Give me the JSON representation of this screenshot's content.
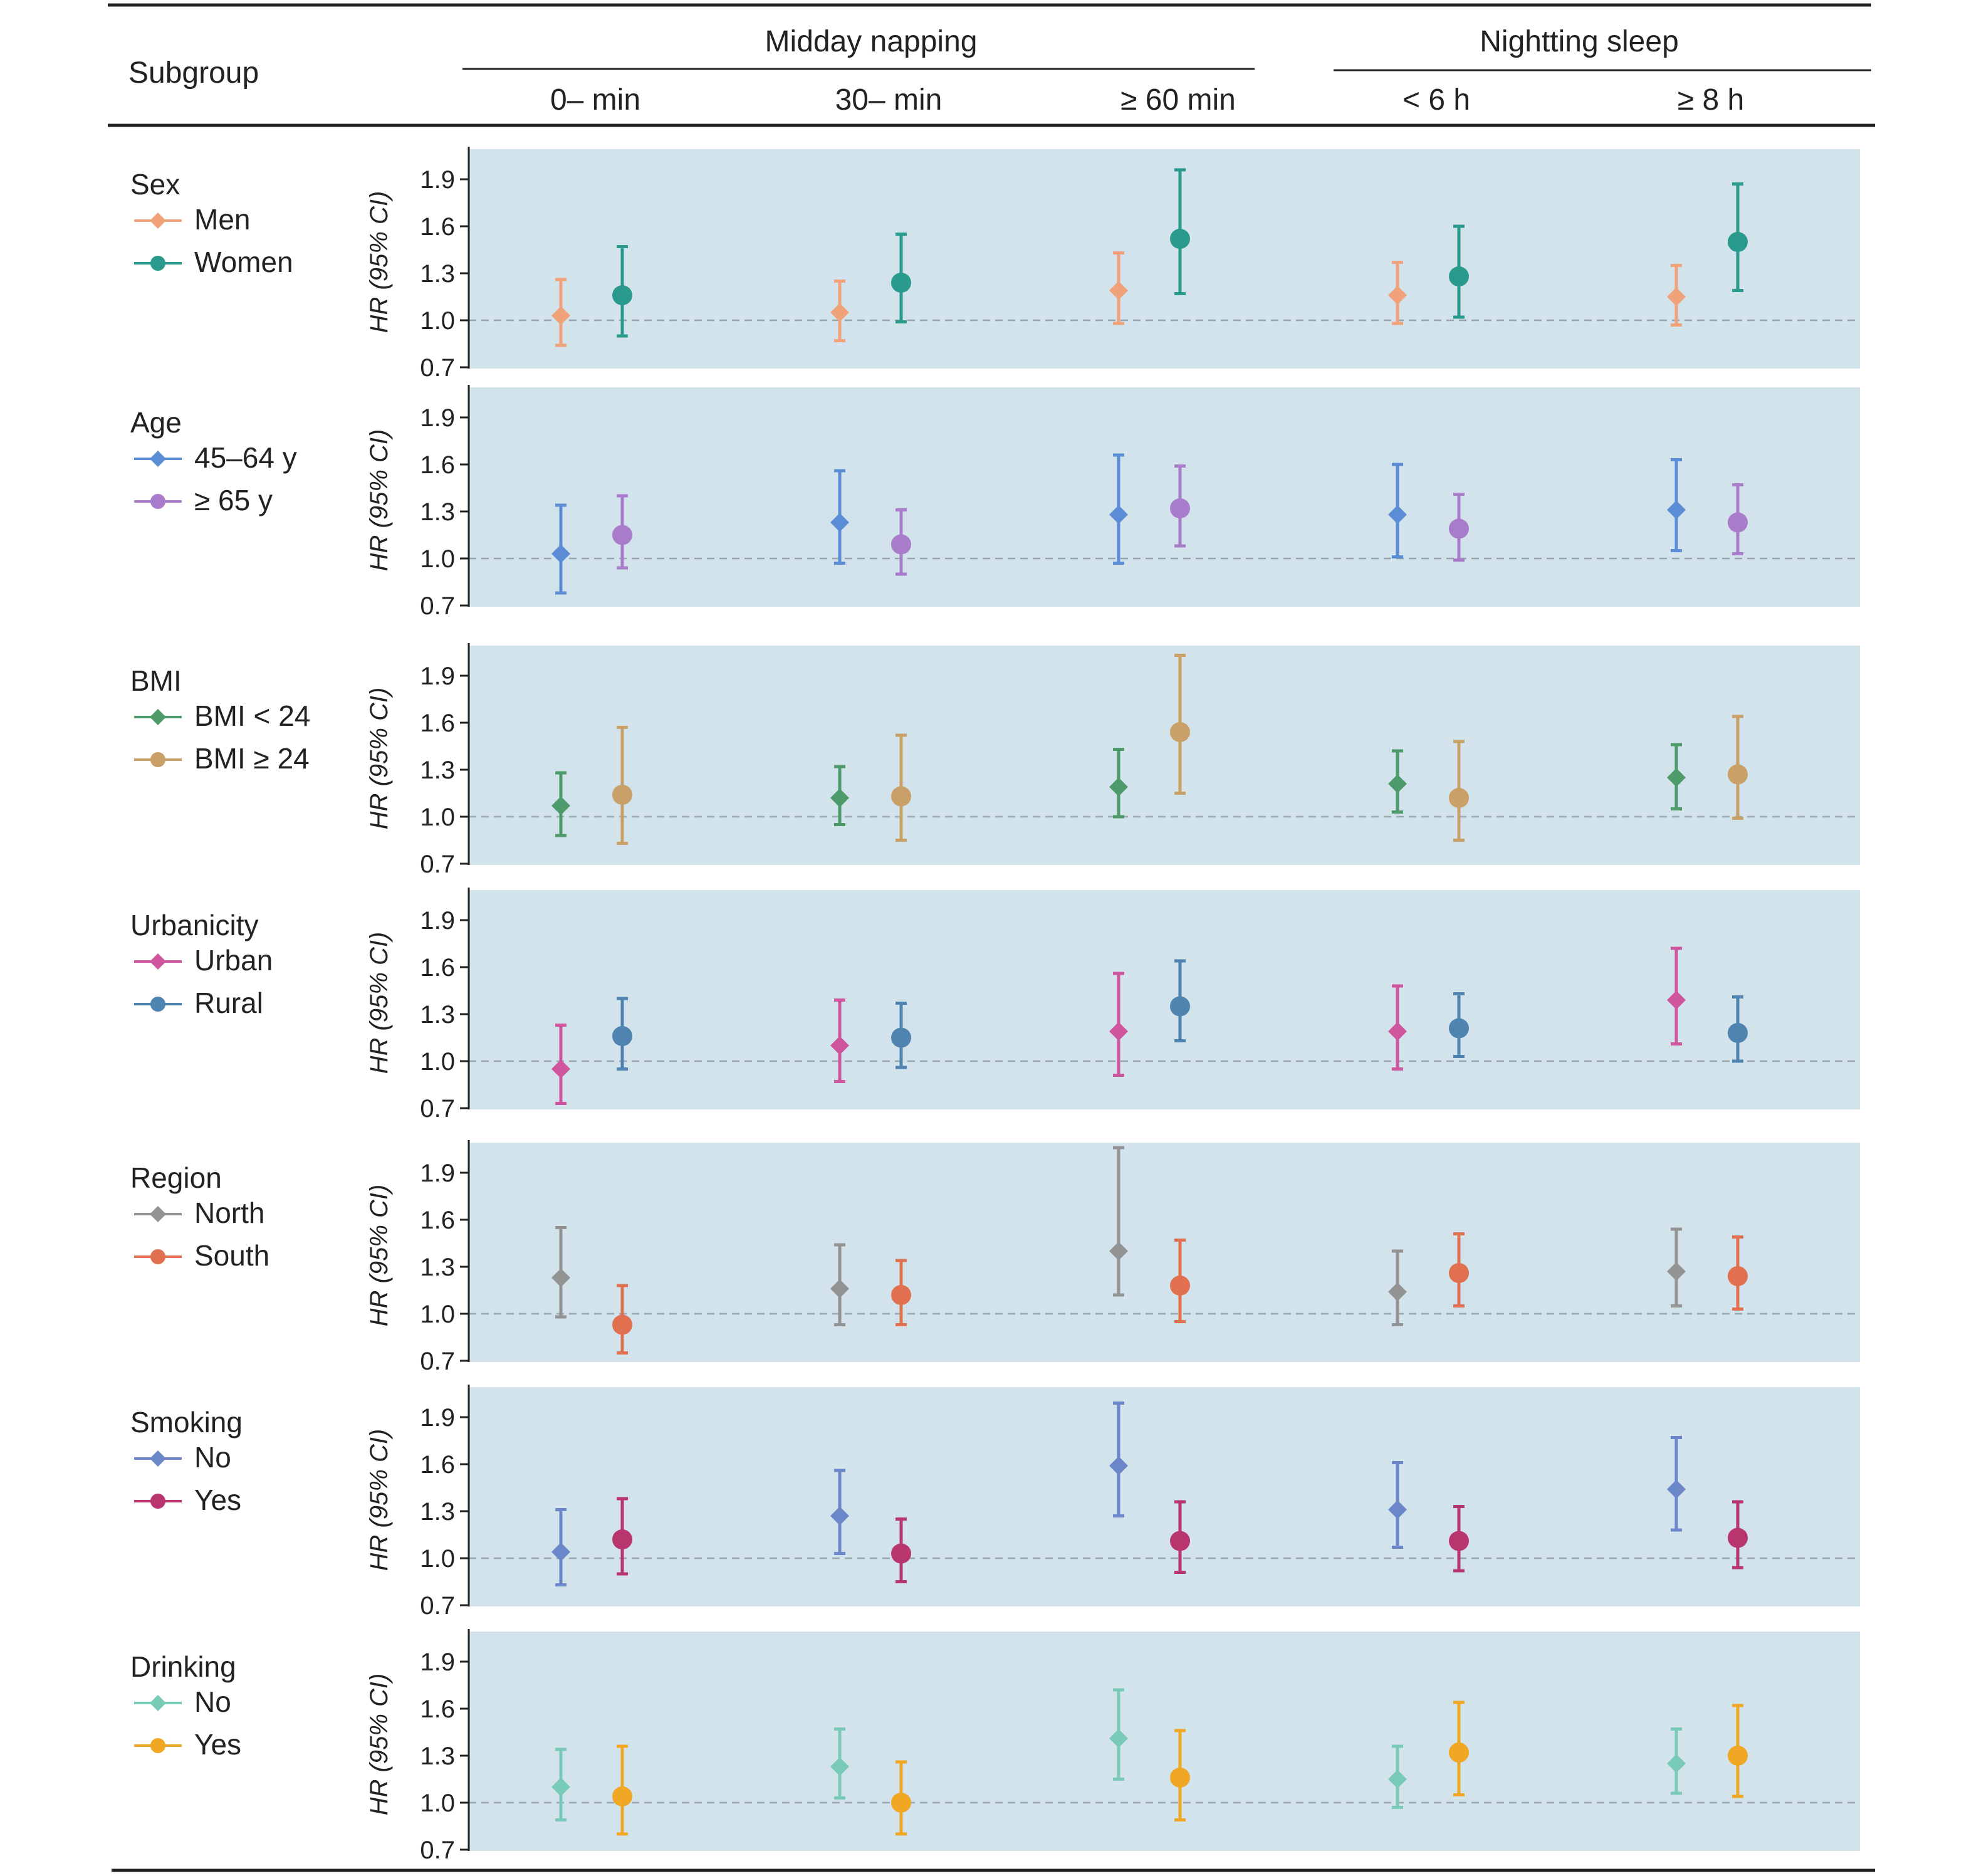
{
  "header": {
    "subgroup": "Subgroup",
    "groups": [
      {
        "label": "Midday napping",
        "columns": [
          "0– min",
          "30– min",
          "≥ 60 min"
        ]
      },
      {
        "label": "Nightting sleep",
        "columns": [
          "< 6 h",
          "≥ 8 h"
        ]
      }
    ]
  },
  "chart_data": {
    "type": "forest",
    "ylabel": "HR (95% CI)",
    "yticks": [
      "1.9",
      "1.6",
      "1.3",
      "1.0",
      "0.7"
    ],
    "ylim": [
      0.7,
      2.05
    ],
    "reference_line": 1.0,
    "columns": [
      "0– min",
      "30– min",
      "≥ 60 min",
      "< 6 h",
      "≥ 8 h"
    ],
    "panels": [
      {
        "title": "Sex",
        "series": [
          {
            "name": "Men",
            "marker": "diamond",
            "color": "#f0a27a",
            "hr": [
              1.03,
              1.05,
              1.19,
              1.16,
              1.15
            ],
            "lo": [
              0.84,
              0.87,
              0.98,
              0.98,
              0.97
            ],
            "hi": [
              1.26,
              1.25,
              1.43,
              1.37,
              1.35
            ]
          },
          {
            "name": "Women",
            "marker": "circle",
            "color": "#2a9a8c",
            "hr": [
              1.16,
              1.24,
              1.52,
              1.28,
              1.5
            ],
            "lo": [
              0.9,
              0.99,
              1.17,
              1.02,
              1.19
            ],
            "hi": [
              1.47,
              1.55,
              1.96,
              1.6,
              1.87
            ]
          }
        ]
      },
      {
        "title": "Age",
        "series": [
          {
            "name": "45–64 y",
            "marker": "diamond",
            "color": "#5b8dd6",
            "hr": [
              1.03,
              1.23,
              1.28,
              1.28,
              1.31
            ],
            "lo": [
              0.78,
              0.97,
              0.97,
              1.01,
              1.05
            ],
            "hi": [
              1.34,
              1.56,
              1.66,
              1.6,
              1.63
            ]
          },
          {
            "name": "≥ 65 y",
            "marker": "circle",
            "color": "#a97ccb",
            "hr": [
              1.15,
              1.09,
              1.32,
              1.19,
              1.23
            ],
            "lo": [
              0.94,
              0.9,
              1.08,
              0.99,
              1.03
            ],
            "hi": [
              1.4,
              1.31,
              1.59,
              1.41,
              1.47
            ]
          }
        ]
      },
      {
        "title": "BMI",
        "series": [
          {
            "name": "BMI < 24",
            "marker": "diamond",
            "color": "#4d9a6a",
            "hr": [
              1.07,
              1.12,
              1.19,
              1.21,
              1.25
            ],
            "lo": [
              0.88,
              0.95,
              1.0,
              1.03,
              1.05
            ],
            "hi": [
              1.28,
              1.32,
              1.43,
              1.42,
              1.46
            ]
          },
          {
            "name": "BMI ≥ 24",
            "marker": "circle",
            "color": "#c9a068",
            "hr": [
              1.14,
              1.13,
              1.54,
              1.12,
              1.27
            ],
            "lo": [
              0.83,
              0.85,
              1.15,
              0.85,
              0.99
            ],
            "hi": [
              1.57,
              1.52,
              2.03,
              1.48,
              1.64
            ]
          }
        ]
      },
      {
        "title": "Urbanicity",
        "series": [
          {
            "name": "Urban",
            "marker": "diamond",
            "color": "#d0559f",
            "hr": [
              0.95,
              1.1,
              1.19,
              1.19,
              1.39
            ],
            "lo": [
              0.73,
              0.87,
              0.91,
              0.95,
              1.11
            ],
            "hi": [
              1.23,
              1.39,
              1.56,
              1.48,
              1.72
            ]
          },
          {
            "name": "Rural",
            "marker": "circle",
            "color": "#4f83b0",
            "hr": [
              1.16,
              1.15,
              1.35,
              1.21,
              1.18
            ],
            "lo": [
              0.95,
              0.96,
              1.13,
              1.03,
              1.0
            ],
            "hi": [
              1.4,
              1.37,
              1.64,
              1.43,
              1.41
            ]
          }
        ]
      },
      {
        "title": "Region",
        "series": [
          {
            "name": "North",
            "marker": "diamond",
            "color": "#939393",
            "hr": [
              1.23,
              1.16,
              1.4,
              1.14,
              1.27
            ],
            "lo": [
              0.98,
              0.93,
              1.12,
              0.93,
              1.05
            ],
            "hi": [
              1.55,
              1.44,
              2.06,
              1.4,
              1.54
            ]
          },
          {
            "name": "South",
            "marker": "circle",
            "color": "#e0704f",
            "hr": [
              0.93,
              1.12,
              1.18,
              1.26,
              1.24
            ],
            "lo": [
              0.75,
              0.93,
              0.95,
              1.05,
              1.03
            ],
            "hi": [
              1.18,
              1.34,
              1.47,
              1.51,
              1.49
            ]
          }
        ]
      },
      {
        "title": "Smoking",
        "series": [
          {
            "name": "No",
            "marker": "diamond",
            "color": "#6b86c9",
            "hr": [
              1.04,
              1.27,
              1.59,
              1.31,
              1.44
            ],
            "lo": [
              0.83,
              1.03,
              1.27,
              1.07,
              1.18
            ],
            "hi": [
              1.31,
              1.56,
              1.99,
              1.61,
              1.77
            ]
          },
          {
            "name": "Yes",
            "marker": "circle",
            "color": "#b8356e",
            "hr": [
              1.12,
              1.03,
              1.11,
              1.11,
              1.13
            ],
            "lo": [
              0.9,
              0.85,
              0.91,
              0.92,
              0.94
            ],
            "hi": [
              1.38,
              1.25,
              1.36,
              1.33,
              1.36
            ]
          }
        ]
      },
      {
        "title": "Drinking",
        "series": [
          {
            "name": "No",
            "marker": "diamond",
            "color": "#79cbb8",
            "hr": [
              1.1,
              1.23,
              1.41,
              1.15,
              1.25
            ],
            "lo": [
              0.89,
              1.03,
              1.15,
              0.97,
              1.06
            ],
            "hi": [
              1.34,
              1.47,
              1.72,
              1.36,
              1.47
            ]
          },
          {
            "name": "Yes",
            "marker": "circle",
            "color": "#f0a723",
            "hr": [
              1.04,
              1.0,
              1.16,
              1.32,
              1.3
            ],
            "lo": [
              0.8,
              0.8,
              0.89,
              1.05,
              1.04
            ],
            "hi": [
              1.36,
              1.26,
              1.46,
              1.64,
              1.62
            ]
          }
        ]
      }
    ]
  }
}
